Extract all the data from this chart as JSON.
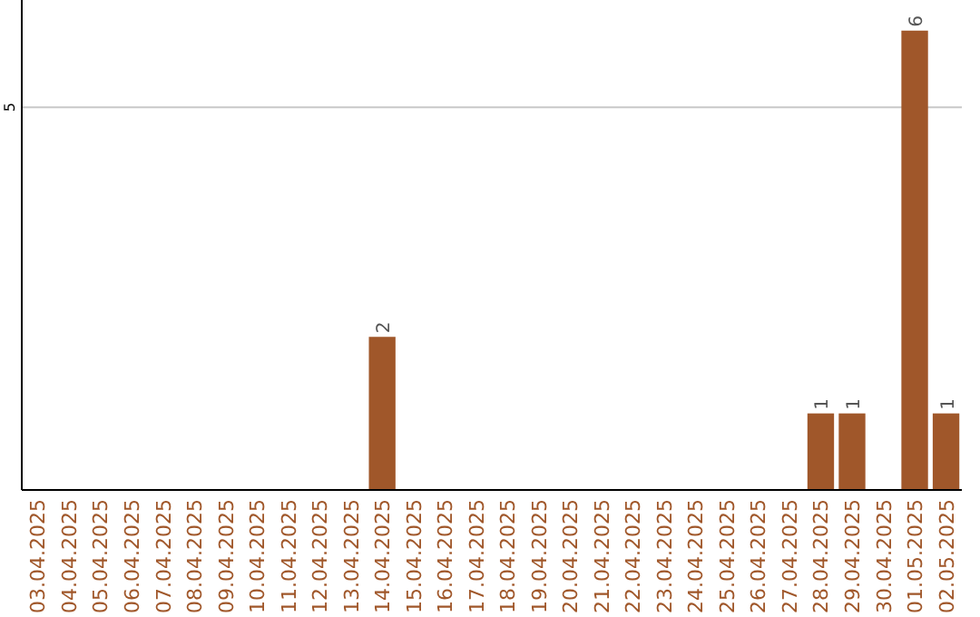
{
  "chart_data": {
    "type": "bar",
    "categories": [
      "03.04.2025",
      "04.04.2025",
      "05.04.2025",
      "06.04.2025",
      "07.04.2025",
      "08.04.2025",
      "09.04.2025",
      "10.04.2025",
      "11.04.2025",
      "12.04.2025",
      "13.04.2025",
      "14.04.2025",
      "15.04.2025",
      "16.04.2025",
      "17.04.2025",
      "18.04.2025",
      "19.04.2025",
      "20.04.2025",
      "21.04.2025",
      "22.04.2025",
      "23.04.2025",
      "24.04.2025",
      "25.04.2025",
      "26.04.2025",
      "27.04.2025",
      "28.04.2025",
      "29.04.2025",
      "30.04.2025",
      "01.05.2025",
      "02.05.2025"
    ],
    "values": [
      0,
      0,
      0,
      0,
      0,
      0,
      0,
      0,
      0,
      0,
      0,
      2,
      0,
      0,
      0,
      0,
      0,
      0,
      0,
      0,
      0,
      0,
      0,
      0,
      0,
      1,
      1,
      0,
      6,
      1
    ],
    "color": "#a0572a",
    "value_labels": [
      null,
      null,
      null,
      null,
      null,
      null,
      null,
      null,
      null,
      null,
      null,
      "2",
      null,
      null,
      null,
      null,
      null,
      null,
      null,
      null,
      null,
      null,
      null,
      null,
      null,
      "1",
      "1",
      null,
      "6",
      "1"
    ],
    "ylim": [
      0,
      6.4
    ],
    "yticks": [
      5
    ],
    "grid": "y"
  }
}
